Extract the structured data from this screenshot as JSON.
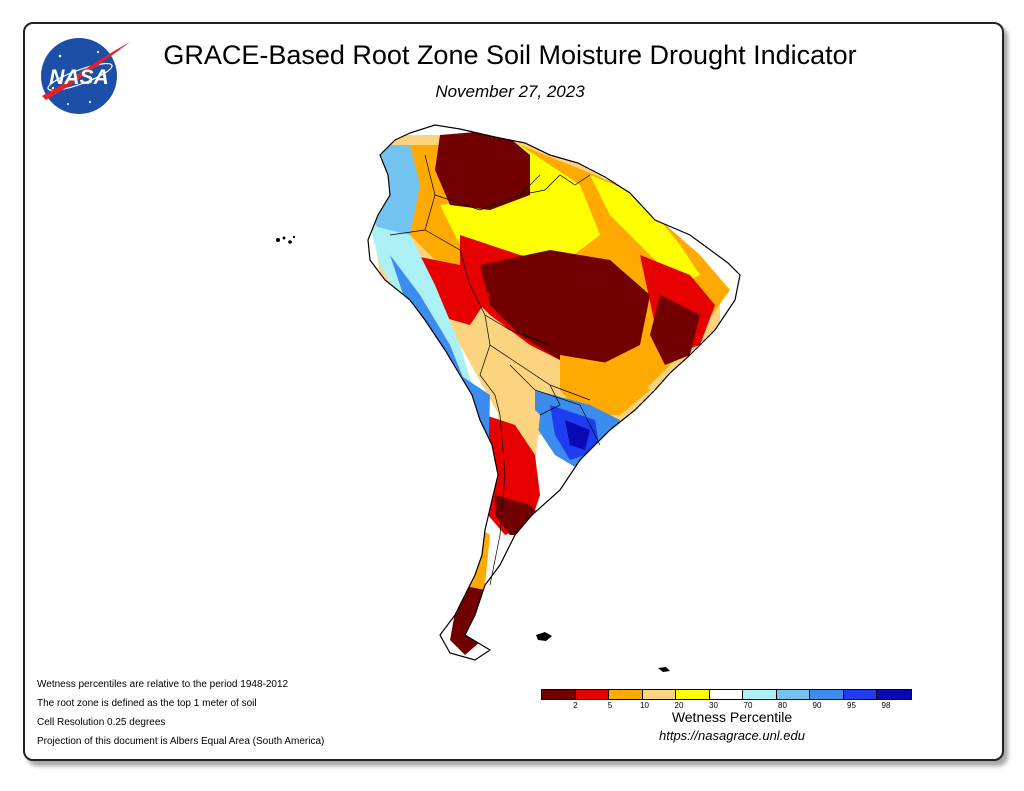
{
  "header": {
    "title": "GRACE-Based Root Zone Soil Moisture Drought Indicator",
    "date": "November 27, 2023"
  },
  "logo": {
    "text": "NASA",
    "icon": "nasa-meatball-logo",
    "colors": {
      "disc": "#1b4fa8",
      "swoosh": "#e0232a"
    }
  },
  "map": {
    "region": "South America",
    "icon": "south-america-map"
  },
  "notes": [
    "Wetness percentiles are relative to the period 1948-2012",
    "The root zone is defined as the top 1 meter of soil",
    "Cell Resolution 0.25 degrees",
    "Projection of this document is Albers Equal Area (South America)"
  ],
  "legend": {
    "title": "Wetness Percentile",
    "ticks": [
      "2",
      "5",
      "10",
      "20",
      "30",
      "70",
      "80",
      "90",
      "95",
      "98"
    ],
    "colors": [
      "#730000",
      "#e60000",
      "#ffaa00",
      "#fcd37f",
      "#ffff00",
      "#ffffff",
      "#aaf0f5",
      "#73c3f0",
      "#3c8cf0",
      "#1e3cf0",
      "#0a0ab4"
    ],
    "url": "https://nasagrace.unl.edu"
  }
}
